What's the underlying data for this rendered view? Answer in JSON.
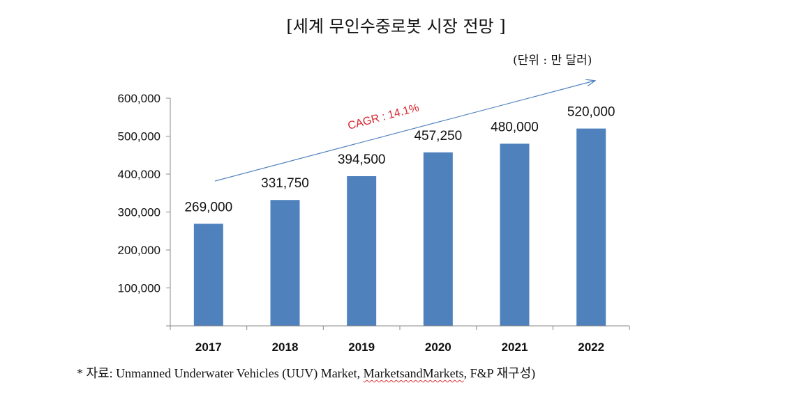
{
  "chart_data": {
    "type": "bar",
    "title": "[세계 무인수중로봇 시장 전망 ]",
    "unit_label": "(단위 : 만 달러)",
    "categories": [
      "2017",
      "2018",
      "2019",
      "2020",
      "2021",
      "2022"
    ],
    "values": [
      269000,
      331750,
      394500,
      457250,
      480000,
      520000
    ],
    "value_labels": [
      "269,000",
      "331,750",
      "394,500",
      "457,250",
      "480,000",
      "520,000"
    ],
    "ylim": [
      0,
      600000
    ],
    "yticks": [
      100000,
      200000,
      300000,
      400000,
      500000,
      600000
    ],
    "ytick_labels": [
      "100,000",
      "200,000",
      "300,000",
      "400,000",
      "500,000",
      "600,000"
    ],
    "annotation": "CAGR : 14.1%",
    "grid": false,
    "colors": {
      "bar": "#4f81bd",
      "arrow": "#4f81bd",
      "annotation": "#d8262e"
    }
  },
  "source": {
    "prefix": "* 자료: Unmanned Underwater Vehicles (UUV) Market, ",
    "underlined": "MarketsandMarkets",
    "suffix": ", F&P 재구성)"
  }
}
